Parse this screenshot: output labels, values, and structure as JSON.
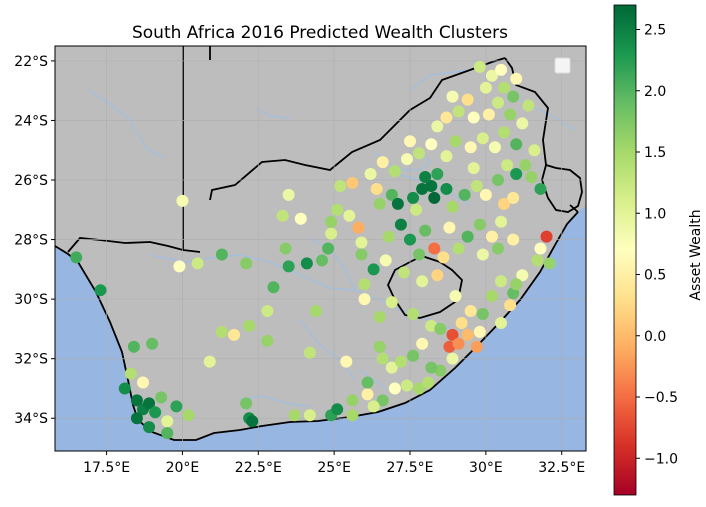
{
  "title": "South Africa 2016 Predicted Wealth Clusters",
  "chart_data": {
    "type": "scatter",
    "title": "South Africa 2016 Predicted Wealth Clusters",
    "projection": "PlateCarree",
    "xlim": [
      15.8,
      33.3
    ],
    "ylim": [
      -35.1,
      -21.5
    ],
    "grid": true,
    "x_ticks": [
      17.5,
      20,
      22.5,
      25,
      27.5,
      30,
      32.5
    ],
    "x_tick_labels": [
      "17.5°E",
      "20°E",
      "22.5°E",
      "25°E",
      "27.5°E",
      "30°E",
      "32.5°E"
    ],
    "y_ticks": [
      -22,
      -24,
      -26,
      -28,
      -30,
      -32,
      -34
    ],
    "y_tick_labels": [
      "22°S",
      "24°S",
      "26°S",
      "28°S",
      "30°S",
      "32°S",
      "34°S"
    ],
    "colorbar": {
      "label": "Asset Wealth",
      "min": -1.3,
      "max": 2.7,
      "ticks": [
        -1.0,
        -0.5,
        0.0,
        0.5,
        1.0,
        1.5,
        2.0,
        2.5
      ],
      "tick_labels": [
        "−1.0",
        "−0.5",
        "0.0",
        "0.5",
        "1.0",
        "1.5",
        "2.0",
        "2.5"
      ],
      "colormap": "RdYlGn"
    },
    "legend": "top-right",
    "colors": {
      "land": "#bdbdbd",
      "ocean": "#97b6e1",
      "rivers": "#9fbfe4",
      "borders": "#000000"
    },
    "points": [
      {
        "lon": 16.5,
        "lat": -28.6,
        "v": 2.1
      },
      {
        "lon": 17.3,
        "lat": -29.7,
        "v": 2.3
      },
      {
        "lon": 18.4,
        "lat": -31.6,
        "v": 2.0
      },
      {
        "lon": 18.3,
        "lat": -32.5,
        "v": 1.4
      },
      {
        "lon": 18.1,
        "lat": -33.0,
        "v": 2.4
      },
      {
        "lon": 18.5,
        "lat": -33.4,
        "v": 2.6
      },
      {
        "lon": 18.7,
        "lat": -33.7,
        "v": 2.5
      },
      {
        "lon": 18.9,
        "lat": -33.5,
        "v": 2.6
      },
      {
        "lon": 19.1,
        "lat": -33.8,
        "v": 2.3
      },
      {
        "lon": 18.5,
        "lat": -34.0,
        "v": 2.6
      },
      {
        "lon": 18.9,
        "lat": -34.3,
        "v": 2.4
      },
      {
        "lon": 19.5,
        "lat": -34.1,
        "v": 1.0
      },
      {
        "lon": 19.3,
        "lat": -33.3,
        "v": 1.8
      },
      {
        "lon": 18.7,
        "lat": -32.8,
        "v": 0.6
      },
      {
        "lon": 19.8,
        "lat": -33.6,
        "v": 2.2
      },
      {
        "lon": 19.5,
        "lat": -34.5,
        "v": 2.0
      },
      {
        "lon": 19.0,
        "lat": -31.5,
        "v": 1.9
      },
      {
        "lon": 20.2,
        "lat": -33.9,
        "v": 1.5
      },
      {
        "lon": 20.0,
        "lat": -26.7,
        "v": 0.8
      },
      {
        "lon": 19.9,
        "lat": -28.9,
        "v": 0.7
      },
      {
        "lon": 20.5,
        "lat": -28.8,
        "v": 1.2
      },
      {
        "lon": 21.3,
        "lat": -28.5,
        "v": 2.0
      },
      {
        "lon": 22.1,
        "lat": -28.8,
        "v": 1.7
      },
      {
        "lon": 21.3,
        "lat": -31.1,
        "v": 1.4
      },
      {
        "lon": 20.9,
        "lat": -32.1,
        "v": 1.0
      },
      {
        "lon": 21.7,
        "lat": -31.2,
        "v": 0.4
      },
      {
        "lon": 22.2,
        "lat": -30.9,
        "v": 1.5
      },
      {
        "lon": 22.1,
        "lat": -33.5,
        "v": 1.8
      },
      {
        "lon": 22.2,
        "lat": -34.0,
        "v": 2.4
      },
      {
        "lon": 22.3,
        "lat": -34.1,
        "v": 2.6
      },
      {
        "lon": 23.0,
        "lat": -29.6,
        "v": 2.0
      },
      {
        "lon": 22.8,
        "lat": -30.4,
        "v": 1.2
      },
      {
        "lon": 22.8,
        "lat": -31.4,
        "v": 1.6
      },
      {
        "lon": 23.4,
        "lat": -28.3,
        "v": 1.7
      },
      {
        "lon": 23.5,
        "lat": -28.9,
        "v": 2.2
      },
      {
        "lon": 23.3,
        "lat": -27.2,
        "v": 1.3
      },
      {
        "lon": 23.5,
        "lat": -26.5,
        "v": 0.9
      },
      {
        "lon": 23.9,
        "lat": -27.3,
        "v": 0.7
      },
      {
        "lon": 24.1,
        "lat": -28.8,
        "v": 2.4
      },
      {
        "lon": 24.6,
        "lat": -28.7,
        "v": 1.9
      },
      {
        "lon": 24.4,
        "lat": -30.4,
        "v": 1.5
      },
      {
        "lon": 24.2,
        "lat": -31.8,
        "v": 1.3
      },
      {
        "lon": 23.7,
        "lat": -33.9,
        "v": 1.5
      },
      {
        "lon": 24.2,
        "lat": -33.9,
        "v": 1.1
      },
      {
        "lon": 24.9,
        "lat": -33.9,
        "v": 2.2
      },
      {
        "lon": 25.1,
        "lat": -33.7,
        "v": 2.4
      },
      {
        "lon": 25.6,
        "lat": -33.9,
        "v": 1.5
      },
      {
        "lon": 24.8,
        "lat": -28.3,
        "v": 2.0
      },
      {
        "lon": 24.9,
        "lat": -27.8,
        "v": 1.1
      },
      {
        "lon": 25.1,
        "lat": -27.0,
        "v": 1.4
      },
      {
        "lon": 25.2,
        "lat": -26.2,
        "v": 1.3
      },
      {
        "lon": 25.6,
        "lat": -26.1,
        "v": 0.1
      },
      {
        "lon": 25.5,
        "lat": -27.2,
        "v": 1.0
      },
      {
        "lon": 25.8,
        "lat": -27.6,
        "v": -0.1
      },
      {
        "lon": 25.9,
        "lat": -28.5,
        "v": 1.7
      },
      {
        "lon": 26.3,
        "lat": -29.0,
        "v": 2.3
      },
      {
        "lon": 26.0,
        "lat": -29.5,
        "v": 1.4
      },
      {
        "lon": 26.0,
        "lat": -30.0,
        "v": 0.6
      },
      {
        "lon": 26.5,
        "lat": -30.6,
        "v": 1.5
      },
      {
        "lon": 25.4,
        "lat": -32.1,
        "v": 0.6
      },
      {
        "lon": 26.5,
        "lat": -31.6,
        "v": 1.6
      },
      {
        "lon": 26.6,
        "lat": -32.0,
        "v": 1.4
      },
      {
        "lon": 26.9,
        "lat": -32.3,
        "v": 1.0
      },
      {
        "lon": 27.2,
        "lat": -32.1,
        "v": 1.4
      },
      {
        "lon": 27.6,
        "lat": -31.9,
        "v": 1.8
      },
      {
        "lon": 27.4,
        "lat": -32.9,
        "v": 1.2
      },
      {
        "lon": 27.8,
        "lat": -33.0,
        "v": 1.5
      },
      {
        "lon": 26.6,
        "lat": -33.4,
        "v": 1.8
      },
      {
        "lon": 26.3,
        "lat": -33.6,
        "v": 1.1
      },
      {
        "lon": 25.6,
        "lat": -33.4,
        "v": 1.6
      },
      {
        "lon": 26.1,
        "lat": -33.2,
        "v": 0.5
      },
      {
        "lon": 26.1,
        "lat": -32.8,
        "v": 1.9
      },
      {
        "lon": 28.1,
        "lat": -32.8,
        "v": 1.4
      },
      {
        "lon": 28.5,
        "lat": -32.4,
        "v": 1.7
      },
      {
        "lon": 28.8,
        "lat": -31.6,
        "v": -0.6
      },
      {
        "lon": 28.9,
        "lat": -31.2,
        "v": -0.7
      },
      {
        "lon": 29.1,
        "lat": -31.5,
        "v": -0.3
      },
      {
        "lon": 29.4,
        "lat": -31.2,
        "v": 0.0
      },
      {
        "lon": 29.7,
        "lat": -31.6,
        "v": -0.2
      },
      {
        "lon": 29.2,
        "lat": -30.8,
        "v": 0.3
      },
      {
        "lon": 29.5,
        "lat": -30.4,
        "v": 0.4
      },
      {
        "lon": 28.2,
        "lat": -30.9,
        "v": 1.2
      },
      {
        "lon": 28.5,
        "lat": -31.0,
        "v": 1.7
      },
      {
        "lon": 27.9,
        "lat": -31.5,
        "v": 0.6
      },
      {
        "lon": 29.9,
        "lat": -30.5,
        "v": 1.8
      },
      {
        "lon": 30.2,
        "lat": -29.9,
        "v": 1.5
      },
      {
        "lon": 30.5,
        "lat": -29.4,
        "v": 1.2
      },
      {
        "lon": 30.9,
        "lat": -29.8,
        "v": 1.9
      },
      {
        "lon": 31.2,
        "lat": -29.2,
        "v": 0.8
      },
      {
        "lon": 31.7,
        "lat": -28.7,
        "v": 1.4
      },
      {
        "lon": 32.1,
        "lat": -28.8,
        "v": 1.6
      },
      {
        "lon": 32.0,
        "lat": -27.9,
        "v": -0.8
      },
      {
        "lon": 31.8,
        "lat": -28.3,
        "v": 0.7
      },
      {
        "lon": 30.9,
        "lat": -28.0,
        "v": 0.5
      },
      {
        "lon": 30.4,
        "lat": -28.3,
        "v": 1.7
      },
      {
        "lon": 29.9,
        "lat": -28.5,
        "v": 0.9
      },
      {
        "lon": 29.1,
        "lat": -28.3,
        "v": 1.4
      },
      {
        "lon": 28.6,
        "lat": -28.6,
        "v": 0.3
      },
      {
        "lon": 28.3,
        "lat": -28.3,
        "v": -0.5
      },
      {
        "lon": 27.8,
        "lat": -28.5,
        "v": 1.8
      },
      {
        "lon": 27.5,
        "lat": -28.0,
        "v": 2.3
      },
      {
        "lon": 27.2,
        "lat": -27.5,
        "v": 2.5
      },
      {
        "lon": 26.8,
        "lat": -27.9,
        "v": 1.5
      },
      {
        "lon": 26.7,
        "lat": -28.7,
        "v": 0.8
      },
      {
        "lon": 27.3,
        "lat": -29.1,
        "v": 1.3
      },
      {
        "lon": 27.9,
        "lat": -29.4,
        "v": 1.0
      },
      {
        "lon": 28.4,
        "lat": -29.2,
        "v": 0.2
      },
      {
        "lon": 26.5,
        "lat": -26.8,
        "v": 1.6
      },
      {
        "lon": 26.9,
        "lat": -26.5,
        "v": 2.0
      },
      {
        "lon": 27.1,
        "lat": -26.8,
        "v": 2.6
      },
      {
        "lon": 27.6,
        "lat": -26.6,
        "v": 2.4
      },
      {
        "lon": 27.9,
        "lat": -26.3,
        "v": 2.6
      },
      {
        "lon": 28.2,
        "lat": -26.2,
        "v": 2.6
      },
      {
        "lon": 28.0,
        "lat": -25.9,
        "v": 2.5
      },
      {
        "lon": 28.4,
        "lat": -25.8,
        "v": 2.2
      },
      {
        "lon": 28.7,
        "lat": -26.3,
        "v": 2.4
      },
      {
        "lon": 28.3,
        "lat": -26.6,
        "v": 2.7
      },
      {
        "lon": 27.7,
        "lat": -27.0,
        "v": 1.2
      },
      {
        "lon": 28.9,
        "lat": -26.9,
        "v": 1.5
      },
      {
        "lon": 29.3,
        "lat": -26.5,
        "v": 2.0
      },
      {
        "lon": 29.7,
        "lat": -26.2,
        "v": 1.3
      },
      {
        "lon": 30.0,
        "lat": -26.5,
        "v": 0.6
      },
      {
        "lon": 30.4,
        "lat": -26.0,
        "v": 1.8
      },
      {
        "lon": 30.7,
        "lat": -25.5,
        "v": 1.2
      },
      {
        "lon": 31.0,
        "lat": -25.8,
        "v": 2.3
      },
      {
        "lon": 31.3,
        "lat": -25.5,
        "v": 1.6
      },
      {
        "lon": 30.6,
        "lat": -26.8,
        "v": 0.2
      },
      {
        "lon": 30.9,
        "lat": -26.6,
        "v": 0.4
      },
      {
        "lon": 30.5,
        "lat": -27.4,
        "v": 1.0
      },
      {
        "lon": 29.8,
        "lat": -27.5,
        "v": 1.7
      },
      {
        "lon": 29.4,
        "lat": -27.9,
        "v": 2.0
      },
      {
        "lon": 28.8,
        "lat": -27.6,
        "v": 0.6
      },
      {
        "lon": 28.0,
        "lat": -27.7,
        "v": 1.9
      },
      {
        "lon": 27.0,
        "lat": -25.7,
        "v": 1.4
      },
      {
        "lon": 26.6,
        "lat": -25.4,
        "v": 0.5
      },
      {
        "lon": 26.2,
        "lat": -25.8,
        "v": 0.9
      },
      {
        "lon": 26.4,
        "lat": -26.3,
        "v": 0.3
      },
      {
        "lon": 27.4,
        "lat": -25.3,
        "v": 0.8
      },
      {
        "lon": 27.8,
        "lat": -25.1,
        "v": 1.3
      },
      {
        "lon": 28.2,
        "lat": -24.8,
        "v": 0.7
      },
      {
        "lon": 28.7,
        "lat": -25.2,
        "v": 1.0
      },
      {
        "lon": 29.0,
        "lat": -24.7,
        "v": 1.5
      },
      {
        "lon": 29.5,
        "lat": -24.9,
        "v": 0.6
      },
      {
        "lon": 29.9,
        "lat": -24.6,
        "v": 1.1
      },
      {
        "lon": 30.3,
        "lat": -24.9,
        "v": 0.8
      },
      {
        "lon": 30.6,
        "lat": -24.4,
        "v": 1.4
      },
      {
        "lon": 31.0,
        "lat": -24.8,
        "v": 2.0
      },
      {
        "lon": 31.2,
        "lat": -24.1,
        "v": 0.9
      },
      {
        "lon": 30.8,
        "lat": -23.8,
        "v": 1.6
      },
      {
        "lon": 30.4,
        "lat": -23.4,
        "v": 1.2
      },
      {
        "lon": 30.1,
        "lat": -23.8,
        "v": 0.5
      },
      {
        "lon": 29.6,
        "lat": -23.9,
        "v": 0.7
      },
      {
        "lon": 29.1,
        "lat": -23.7,
        "v": 1.3
      },
      {
        "lon": 28.7,
        "lat": -23.9,
        "v": 0.4
      },
      {
        "lon": 28.9,
        "lat": -23.2,
        "v": 0.8
      },
      {
        "lon": 29.4,
        "lat": -23.3,
        "v": 0.3
      },
      {
        "lon": 30.0,
        "lat": -22.9,
        "v": 1.0
      },
      {
        "lon": 30.6,
        "lat": -22.9,
        "v": 1.4
      },
      {
        "lon": 31.0,
        "lat": -22.6,
        "v": 0.6
      },
      {
        "lon": 30.2,
        "lat": -22.5,
        "v": 0.9
      },
      {
        "lon": 29.8,
        "lat": -22.2,
        "v": 1.2
      },
      {
        "lon": 30.5,
        "lat": -22.3,
        "v": 0.7
      },
      {
        "lon": 30.9,
        "lat": -23.2,
        "v": 1.8
      },
      {
        "lon": 31.4,
        "lat": -23.5,
        "v": 1.3
      },
      {
        "lon": 31.6,
        "lat": -25.0,
        "v": 1.1
      },
      {
        "lon": 31.5,
        "lat": -25.9,
        "v": 1.6
      },
      {
        "lon": 31.8,
        "lat": -26.3,
        "v": 2.2
      },
      {
        "lon": 30.2,
        "lat": -27.9,
        "v": 0.5
      },
      {
        "lon": 29.0,
        "lat": -29.9,
        "v": 0.8
      },
      {
        "lon": 30.8,
        "lat": -30.2,
        "v": 0.3
      },
      {
        "lon": 31.0,
        "lat": -29.5,
        "v": 1.6
      },
      {
        "lon": 30.5,
        "lat": -30.8,
        "v": 1.0
      },
      {
        "lon": 29.8,
        "lat": -31.1,
        "v": 0.6
      },
      {
        "lon": 28.9,
        "lat": -32.0,
        "v": 0.9
      },
      {
        "lon": 28.2,
        "lat": -32.3,
        "v": 1.8
      },
      {
        "lon": 27.0,
        "lat": -33.0,
        "v": 0.7
      },
      {
        "lon": 28.4,
        "lat": -24.2,
        "v": 0.9
      },
      {
        "lon": 27.5,
        "lat": -24.7,
        "v": 0.6
      },
      {
        "lon": 29.6,
        "lat": -25.6,
        "v": 1.0
      },
      {
        "lon": 25.9,
        "lat": -28.1,
        "v": 1.0
      },
      {
        "lon": 24.9,
        "lat": -27.4,
        "v": 1.6
      },
      {
        "lon": 26.9,
        "lat": -30.1,
        "v": 1.1
      },
      {
        "lon": 27.6,
        "lat": -30.5,
        "v": 1.4
      }
    ]
  }
}
